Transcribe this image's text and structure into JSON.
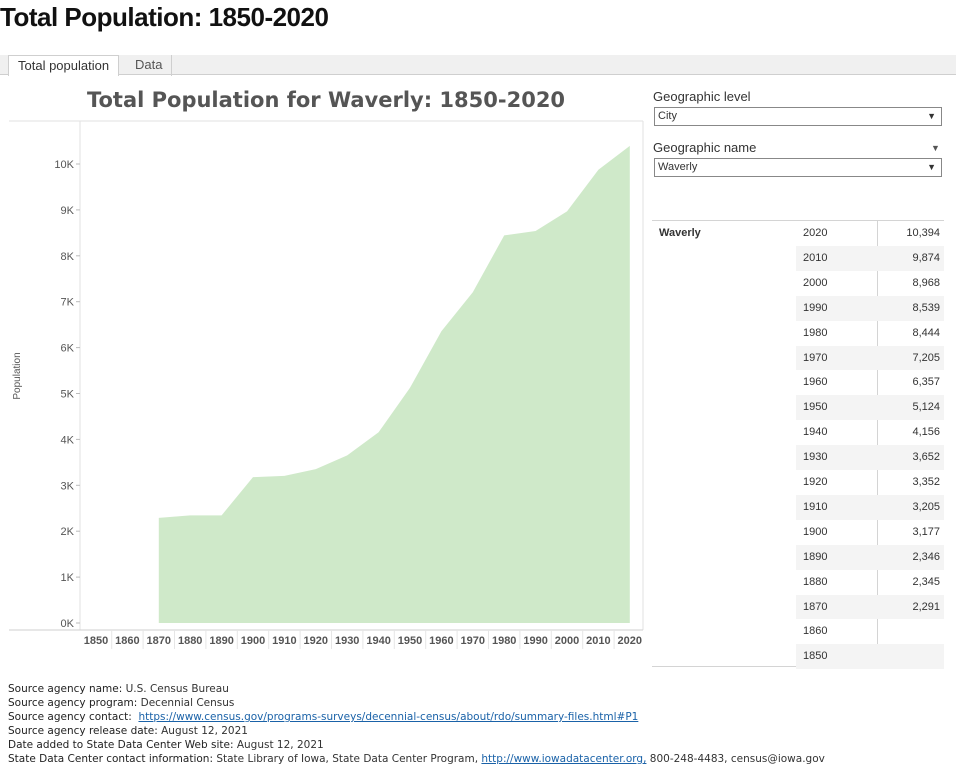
{
  "page": {
    "title": "Total Population: 1850-2020"
  },
  "tabs": [
    {
      "label": "Total population",
      "active": true
    },
    {
      "label": "Data",
      "active": false
    }
  ],
  "controls": {
    "geo_level_label": "Geographic level",
    "geo_level_value": "City",
    "geo_name_label": "Geographic name",
    "geo_name_value": "Waverly"
  },
  "chart_data": {
    "type": "area",
    "title": "Total Population for Waverly: 1850-2020",
    "xlabel": "",
    "ylabel": "Population",
    "x": [
      "1850",
      "1860",
      "1870",
      "1880",
      "1890",
      "1900",
      "1910",
      "1920",
      "1930",
      "1940",
      "1950",
      "1960",
      "1970",
      "1980",
      "1990",
      "2000",
      "2010",
      "2020"
    ],
    "values": [
      null,
      null,
      2291,
      2345,
      2346,
      3177,
      3205,
      3352,
      3652,
      4156,
      5124,
      6357,
      7205,
      8444,
      8539,
      8968,
      9874,
      10394
    ],
    "yticks": [
      "0K",
      "1K",
      "2K",
      "3K",
      "4K",
      "5K",
      "6K",
      "7K",
      "8K",
      "9K",
      "10K"
    ],
    "ylim": [
      0,
      11000
    ],
    "fill_color": "#cfe9c9",
    "grid": false
  },
  "table": {
    "name": "Waverly",
    "rows": [
      {
        "year": "2020",
        "value": "10,394"
      },
      {
        "year": "2010",
        "value": "9,874"
      },
      {
        "year": "2000",
        "value": "8,968"
      },
      {
        "year": "1990",
        "value": "8,539"
      },
      {
        "year": "1980",
        "value": "8,444"
      },
      {
        "year": "1970",
        "value": "7,205"
      },
      {
        "year": "1960",
        "value": "6,357"
      },
      {
        "year": "1950",
        "value": "5,124"
      },
      {
        "year": "1940",
        "value": "4,156"
      },
      {
        "year": "1930",
        "value": "3,652"
      },
      {
        "year": "1920",
        "value": "3,352"
      },
      {
        "year": "1910",
        "value": "3,205"
      },
      {
        "year": "1900",
        "value": "3,177"
      },
      {
        "year": "1890",
        "value": "2,346"
      },
      {
        "year": "1880",
        "value": "2,345"
      },
      {
        "year": "1870",
        "value": "2,291"
      },
      {
        "year": "1860",
        "value": ""
      },
      {
        "year": "1850",
        "value": ""
      }
    ]
  },
  "sources": {
    "agency_name_label": "Source agency name:",
    "agency_name": "U.S. Census Bureau",
    "program_label": "Source agency program:",
    "program": "Decennial Census",
    "contact_label": "Source agency contact:",
    "contact_link": "https://www.census.gov/programs-surveys/decennial-census/about/rdo/summary-files.html#P1",
    "release_label": "Source agency release date:",
    "release": "August 12, 2021",
    "added_label": "Date added to State Data Center Web site:",
    "added": "August 12, 2021",
    "sdc_label": "State Data Center contact information:",
    "sdc_text": "State Library of Iowa, State Data Center Program,",
    "sdc_link": "http://www.iowadatacenter.org,",
    "sdc_tail": "800-248-4483, census@iowa.gov"
  },
  "colors": {
    "link": "#1a62a8",
    "fill": "#cfe9c9"
  },
  "icons": {
    "dropdown": "caret-down-icon",
    "filter": "filter-caret-icon"
  }
}
